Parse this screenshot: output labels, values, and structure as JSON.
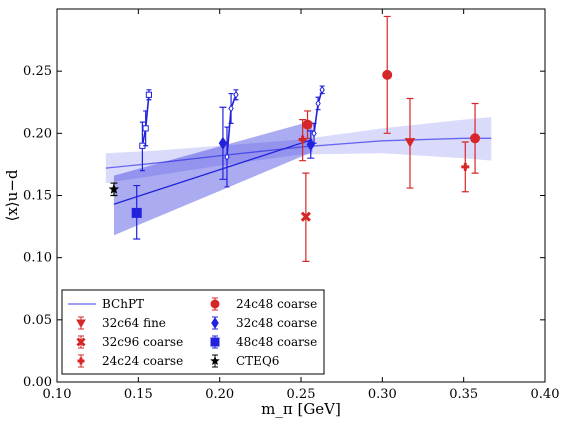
{
  "chart_data": {
    "type": "scatter",
    "xlabel": "m_π [GeV]",
    "ylabel": "⟨x⟩u−d",
    "xlim": [
      0.1,
      0.4
    ],
    "ylim": [
      0.0,
      0.3
    ],
    "x_ticks": [
      0.1,
      0.15,
      0.2,
      0.25,
      0.3,
      0.35,
      0.4
    ],
    "x_tick_labels": [
      "0.10",
      "0.15",
      "0.20",
      "0.25",
      "0.30",
      "0.35",
      "0.40"
    ],
    "y_ticks": [
      0.0,
      0.05,
      0.1,
      0.15,
      0.2,
      0.25
    ],
    "y_tick_labels": [
      "0.00",
      "0.05",
      "0.10",
      "0.15",
      "0.20",
      "0.25"
    ],
    "grid": false,
    "legend_position": "bottom-left",
    "colors": {
      "red": "#d62728",
      "blue": "#2222dd",
      "fit": "#6666ee",
      "black": "#000000"
    },
    "bands": [
      {
        "name": "BChPT",
        "color": "#6666ee",
        "x": [
          0.13,
          0.16,
          0.2,
          0.25,
          0.3,
          0.35,
          0.367
        ],
        "y": [
          0.172,
          0.176,
          0.182,
          0.189,
          0.194,
          0.196,
          0.196
        ],
        "lo": [
          0.16,
          0.166,
          0.174,
          0.183,
          0.184,
          0.18,
          0.178
        ],
        "hi": [
          0.184,
          0.186,
          0.19,
          0.195,
          0.204,
          0.211,
          0.213
        ]
      },
      {
        "name": "",
        "color": "#2222dd",
        "x": [
          0.135,
          0.257
        ],
        "y": [
          0.143,
          0.195
        ],
        "lo": [
          0.118,
          0.185
        ],
        "hi": [
          0.166,
          0.21
        ]
      }
    ],
    "series": [
      {
        "name": "32c64 fine",
        "marker": "triangle-down",
        "color": "#d62728",
        "points": [
          {
            "x": 0.317,
            "y": 0.193,
            "lo": 0.156,
            "hi": 0.228
          }
        ]
      },
      {
        "name": "32c96 coarse",
        "marker": "x",
        "color": "#d62728",
        "points": [
          {
            "x": 0.253,
            "y": 0.133,
            "lo": 0.097,
            "hi": 0.168
          }
        ]
      },
      {
        "name": "24c24 coarse",
        "marker": "plus",
        "color": "#d62728",
        "points": [
          {
            "x": 0.251,
            "y": 0.195,
            "lo": 0.178,
            "hi": 0.211
          },
          {
            "x": 0.351,
            "y": 0.173,
            "lo": 0.153,
            "hi": 0.193
          }
        ]
      },
      {
        "name": "24c48 coarse",
        "marker": "circle",
        "color": "#d62728",
        "points": [
          {
            "x": 0.254,
            "y": 0.207,
            "lo": 0.196,
            "hi": 0.218
          },
          {
            "x": 0.303,
            "y": 0.247,
            "lo": 0.2,
            "hi": 0.294
          },
          {
            "x": 0.357,
            "y": 0.196,
            "lo": 0.168,
            "hi": 0.224
          }
        ]
      },
      {
        "name": "32c48 coarse",
        "marker": "diamond",
        "color": "#2222dd",
        "points": [
          {
            "x": 0.202,
            "y": 0.192,
            "lo": 0.163,
            "hi": 0.221
          },
          {
            "x": 0.256,
            "y": 0.191,
            "lo": 0.18,
            "hi": 0.202
          }
        ]
      },
      {
        "name": "48c48 coarse",
        "marker": "square",
        "color": "#2222dd",
        "points": [
          {
            "x": 0.149,
            "y": 0.136,
            "lo": 0.115,
            "hi": 0.158
          }
        ]
      },
      {
        "name": "CTEQ6",
        "marker": "star",
        "color": "#000000",
        "points": [
          {
            "x": 0.135,
            "y": 0.155,
            "lo": 0.15,
            "hi": 0.16
          }
        ]
      }
    ],
    "extrapolations": [
      {
        "color": "#2222dd",
        "mark": "square",
        "points": [
          {
            "x": 0.1525,
            "y": 0.19,
            "lo": 0.17,
            "hi": 0.209
          },
          {
            "x": 0.1545,
            "y": 0.204,
            "lo": 0.19,
            "hi": 0.218
          },
          {
            "x": 0.1565,
            "y": 0.231,
            "lo": 0.227,
            "hi": 0.235
          }
        ]
      },
      {
        "color": "#2222dd",
        "mark": "diamond",
        "points": [
          {
            "x": 0.2045,
            "y": 0.181,
            "lo": 0.157,
            "hi": 0.205
          },
          {
            "x": 0.207,
            "y": 0.22,
            "lo": 0.208,
            "hi": 0.232
          },
          {
            "x": 0.21,
            "y": 0.231,
            "lo": 0.227,
            "hi": 0.235
          }
        ]
      },
      {
        "color": "#2222dd",
        "mark": "diamond",
        "points": [
          {
            "x": 0.258,
            "y": 0.2,
            "lo": 0.192,
            "hi": 0.208
          },
          {
            "x": 0.2605,
            "y": 0.224,
            "lo": 0.219,
            "hi": 0.229
          },
          {
            "x": 0.263,
            "y": 0.235,
            "lo": 0.232,
            "hi": 0.238
          }
        ]
      }
    ],
    "legend": {
      "col1": [
        {
          "label": "BChPT",
          "marker": "line",
          "color": "#6666ee"
        },
        {
          "label": "32c64 fine",
          "marker": "triangle-down",
          "color": "#d62728"
        },
        {
          "label": "32c96 coarse",
          "marker": "x",
          "color": "#d62728"
        },
        {
          "label": "24c24 coarse",
          "marker": "plus",
          "color": "#d62728"
        }
      ],
      "col2": [
        {
          "label": "24c48 coarse",
          "marker": "circle",
          "color": "#d62728"
        },
        {
          "label": "32c48 coarse",
          "marker": "diamond",
          "color": "#2222dd"
        },
        {
          "label": "48c48 coarse",
          "marker": "square",
          "color": "#2222dd"
        },
        {
          "label": "CTEQ6",
          "marker": "star",
          "color": "#000000"
        }
      ]
    }
  }
}
